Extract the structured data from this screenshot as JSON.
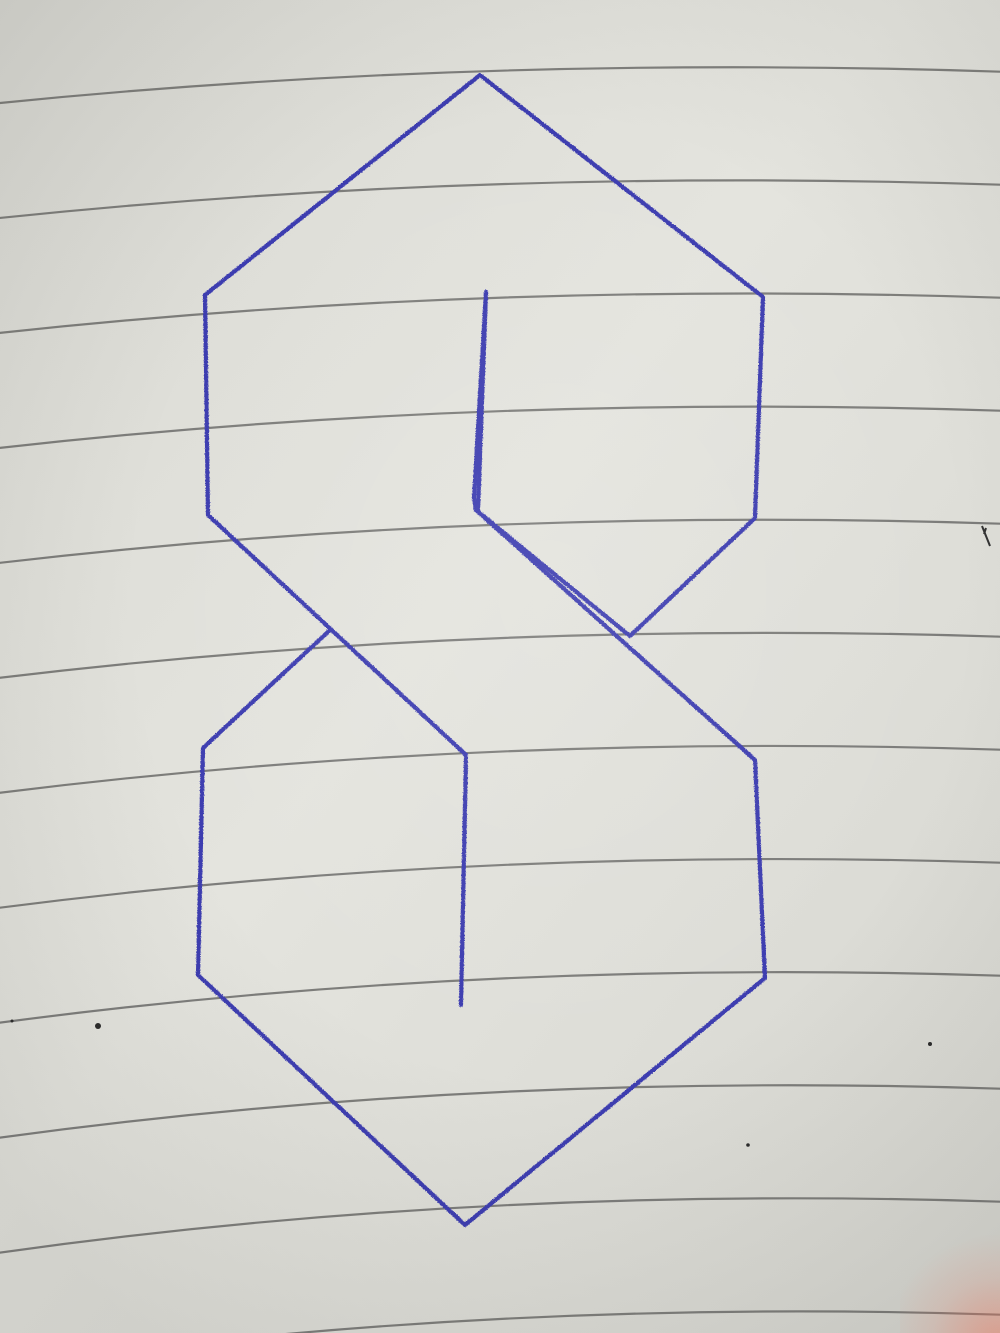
{
  "scene": {
    "subject": "hand-drawn-impossible-figure-eight",
    "paper_color": "#e2e2dc",
    "rule_line_color": "#6c6c6a",
    "ink_color": "#3c3cb0",
    "corner_glow_color": "#eb785f"
  }
}
